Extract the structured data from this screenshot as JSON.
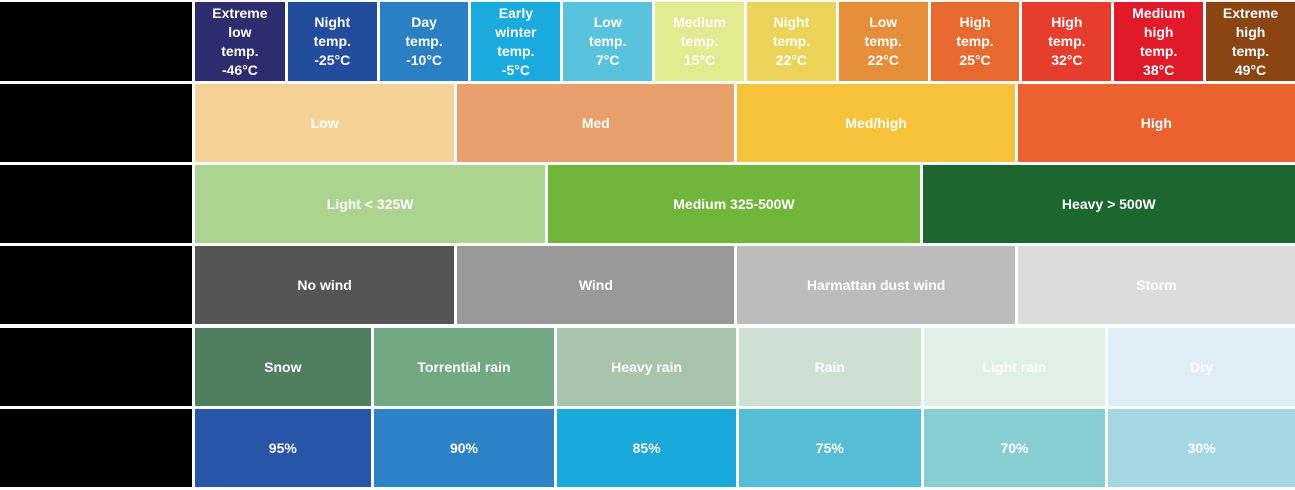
{
  "temperature": [
    {
      "label": "Extreme\nlow\ntemp.\n-46°C",
      "color": "#2d2c6e"
    },
    {
      "label": "Night\ntemp.\n-25°C",
      "color": "#234c9d"
    },
    {
      "label": "Day\ntemp.\n-10°C",
      "color": "#2b7fc3"
    },
    {
      "label": "Early\nwinter\ntemp.\n-5°C",
      "color": "#1aaade"
    },
    {
      "label": "Low\ntemp.\n7°C",
      "color": "#59c2dc"
    },
    {
      "label": "Medium\ntemp.\n15°C",
      "color": "#e3ea8f"
    },
    {
      "label": "Night\ntemp.\n22°C",
      "color": "#ecd35a"
    },
    {
      "label": "Low\ntemp.\n22°C",
      "color": "#e78e3a"
    },
    {
      "label": "High\ntemp.\n25°C",
      "color": "#e96a2f"
    },
    {
      "label": "High\ntemp.\n32°C",
      "color": "#e63d2f"
    },
    {
      "label": "Medium\nhigh\ntemp.\n38°C",
      "color": "#e11a2a"
    },
    {
      "label": "Extreme\nhigh\ntemp.\n49°C",
      "color": "#8b4513"
    }
  ],
  "intensity": [
    {
      "label": "Low",
      "color": "#f5d398"
    },
    {
      "label": "Med",
      "color": "#e8a06c"
    },
    {
      "label": "Med/high",
      "color": "#f6c33a"
    },
    {
      "label": "High",
      "color": "#eb6230"
    }
  ],
  "load": [
    {
      "label": "Light < 325W",
      "color": "#acd38f"
    },
    {
      "label": "Medium 325-500W",
      "color": "#6fb63b"
    },
    {
      "label": "Heavy > 500W",
      "color": "#1c6730"
    }
  ],
  "wind": [
    {
      "label": "No wind",
      "color": "#555555"
    },
    {
      "label": "Wind",
      "color": "#999999"
    },
    {
      "label": "Harmattan dust wind",
      "color": "#bcbcbc"
    },
    {
      "label": "Storm",
      "color": "#dcdcdc"
    }
  ],
  "precipitation": [
    {
      "label": "Snow",
      "color": "#4f7f5e"
    },
    {
      "label": "Torrential rain",
      "color": "#72a985"
    },
    {
      "label": "Heavy rain",
      "color": "#a8c4ae"
    },
    {
      "label": "Rain",
      "color": "#cde0d2"
    },
    {
      "label": "Light rain",
      "color": "#e2efe6"
    },
    {
      "label": "Dry",
      "color": "#dfeef5"
    }
  ],
  "humidity": [
    {
      "label": "95%",
      "color": "#2756a6"
    },
    {
      "label": "90%",
      "color": "#2c82c4"
    },
    {
      "label": "85%",
      "color": "#18a8d9"
    },
    {
      "label": "75%",
      "color": "#55bdd4"
    },
    {
      "label": "70%",
      "color": "#87cdd2"
    },
    {
      "label": "30%",
      "color": "#a4d6e3"
    }
  ]
}
